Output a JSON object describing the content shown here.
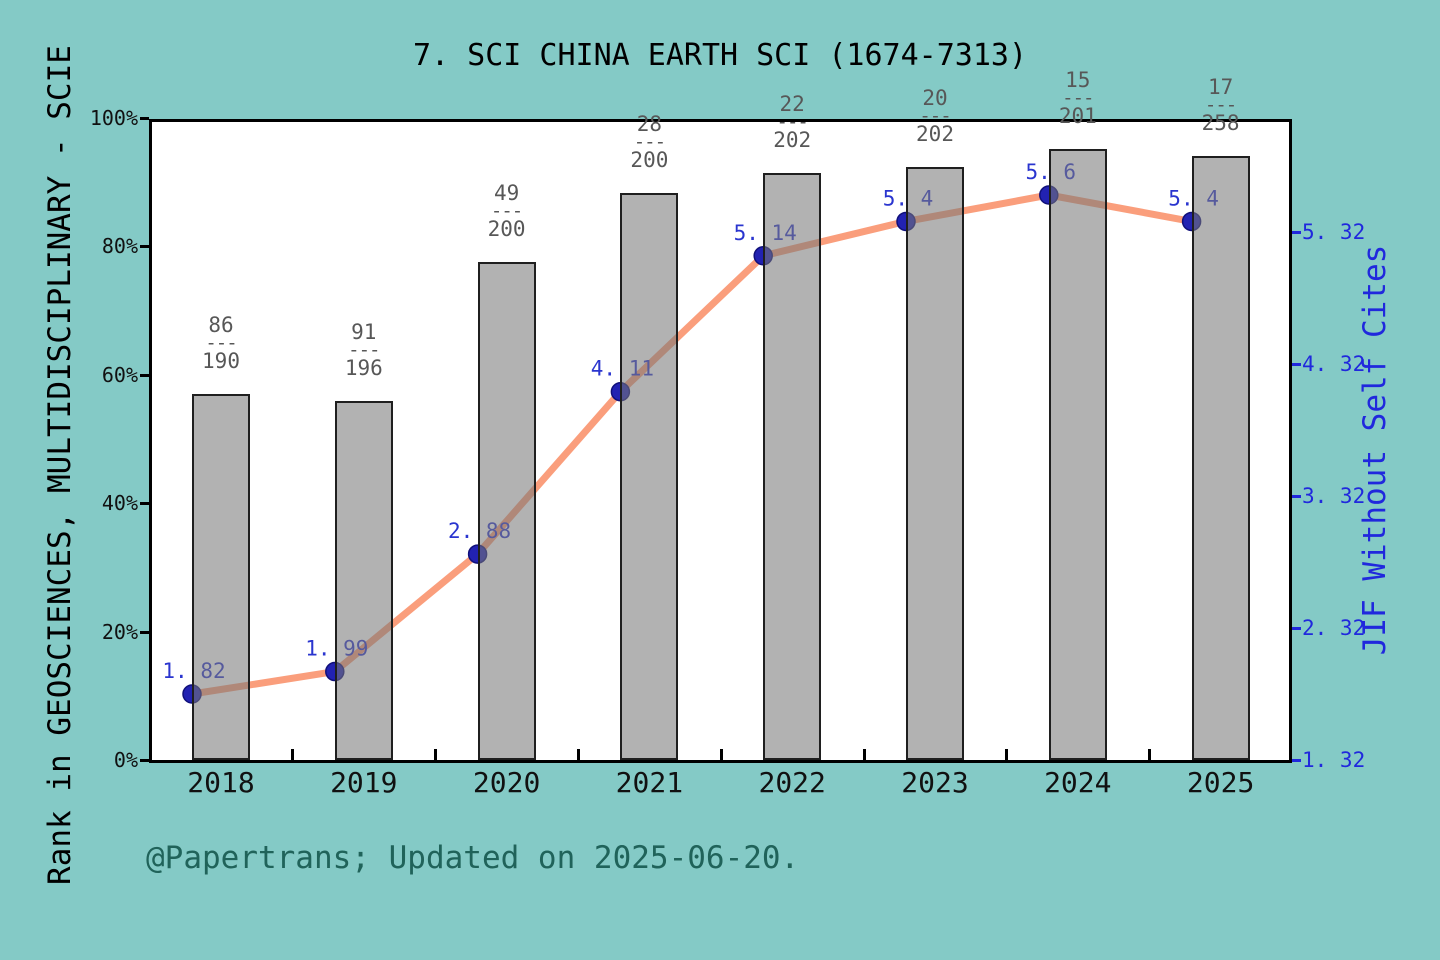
{
  "title": "7. SCI CHINA EARTH SCI (1674-7313)",
  "footer": "@Papertrans; Updated on 2025-06-20.",
  "colors": {
    "background": "#84cac6",
    "plot_bg": "#ffffff",
    "bar_fill": "rgba(120,120,120,0.57)",
    "bar_border": "#1f1f1f",
    "line": "#fa9e7c",
    "marker": "#2222b2",
    "marker_edge": "#10107a",
    "value_label": "#2a35cf",
    "axis_blue": "#2028dd",
    "fraction_text": "#575757",
    "axis_text": "#111111",
    "footer_text": "#20635a"
  },
  "chart_data": {
    "type": "bar+line",
    "title": "7. SCI CHINA EARTH SCI (1674-7313)",
    "categories": [
      "2018",
      "2019",
      "2020",
      "2021",
      "2022",
      "2023",
      "2024",
      "2025"
    ],
    "series": [
      {
        "name": "Rank percentile in GEOSCIENCES, MULTIDISCIPLINARY - SCIE",
        "type": "bar",
        "axis": "left",
        "unit": "%",
        "values": [
          57.0,
          55.9,
          77.6,
          88.3,
          91.4,
          92.4,
          95.2,
          94.1
        ],
        "fraction_separator": "---",
        "rank_fractions": [
          {
            "rank": "86",
            "total": "190"
          },
          {
            "rank": "91",
            "total": "196"
          },
          {
            "rank": "49",
            "total": "200"
          },
          {
            "rank": "28",
            "total": "200"
          },
          {
            "rank": "22",
            "total": "202"
          },
          {
            "rank": "20",
            "total": "202"
          },
          {
            "rank": "15",
            "total": "201"
          },
          {
            "rank": "17",
            "total": "258"
          }
        ]
      },
      {
        "name": "JIF Without Self Cites",
        "type": "line",
        "axis": "right",
        "values": [
          1.82,
          1.99,
          2.88,
          4.11,
          5.14,
          5.4,
          5.6,
          5.4
        ],
        "point_labels": [
          "1. 82",
          "1. 99",
          "2. 88",
          "4. 11",
          "5. 14",
          "5. 4",
          "5. 6",
          "5. 4"
        ]
      }
    ],
    "left_axis": {
      "label": "Rank in GEOSCIENCES, MULTIDISCIPLINARY - SCIE",
      "tick_labels": [
        "0%",
        "20%",
        "40%",
        "60%",
        "80%",
        "100%"
      ],
      "tick_values": [
        0,
        20,
        40,
        60,
        80,
        100
      ],
      "range": [
        0,
        100
      ]
    },
    "right_axis": {
      "label": "JIF Without Self Cites",
      "tick_labels": [
        "1. 32",
        "2. 32",
        "3. 32",
        "4. 32",
        "5. 32"
      ],
      "tick_values": [
        1.32,
        2.32,
        3.32,
        4.32,
        5.32
      ],
      "range": [
        1.32,
        6.2
      ]
    },
    "x_axis": {
      "tick_labels": [
        "2018",
        "2019",
        "2020",
        "2021",
        "2022",
        "2023",
        "2024",
        "2025"
      ],
      "minor_ticks_between_years": true
    },
    "grid": false,
    "legend": false
  }
}
